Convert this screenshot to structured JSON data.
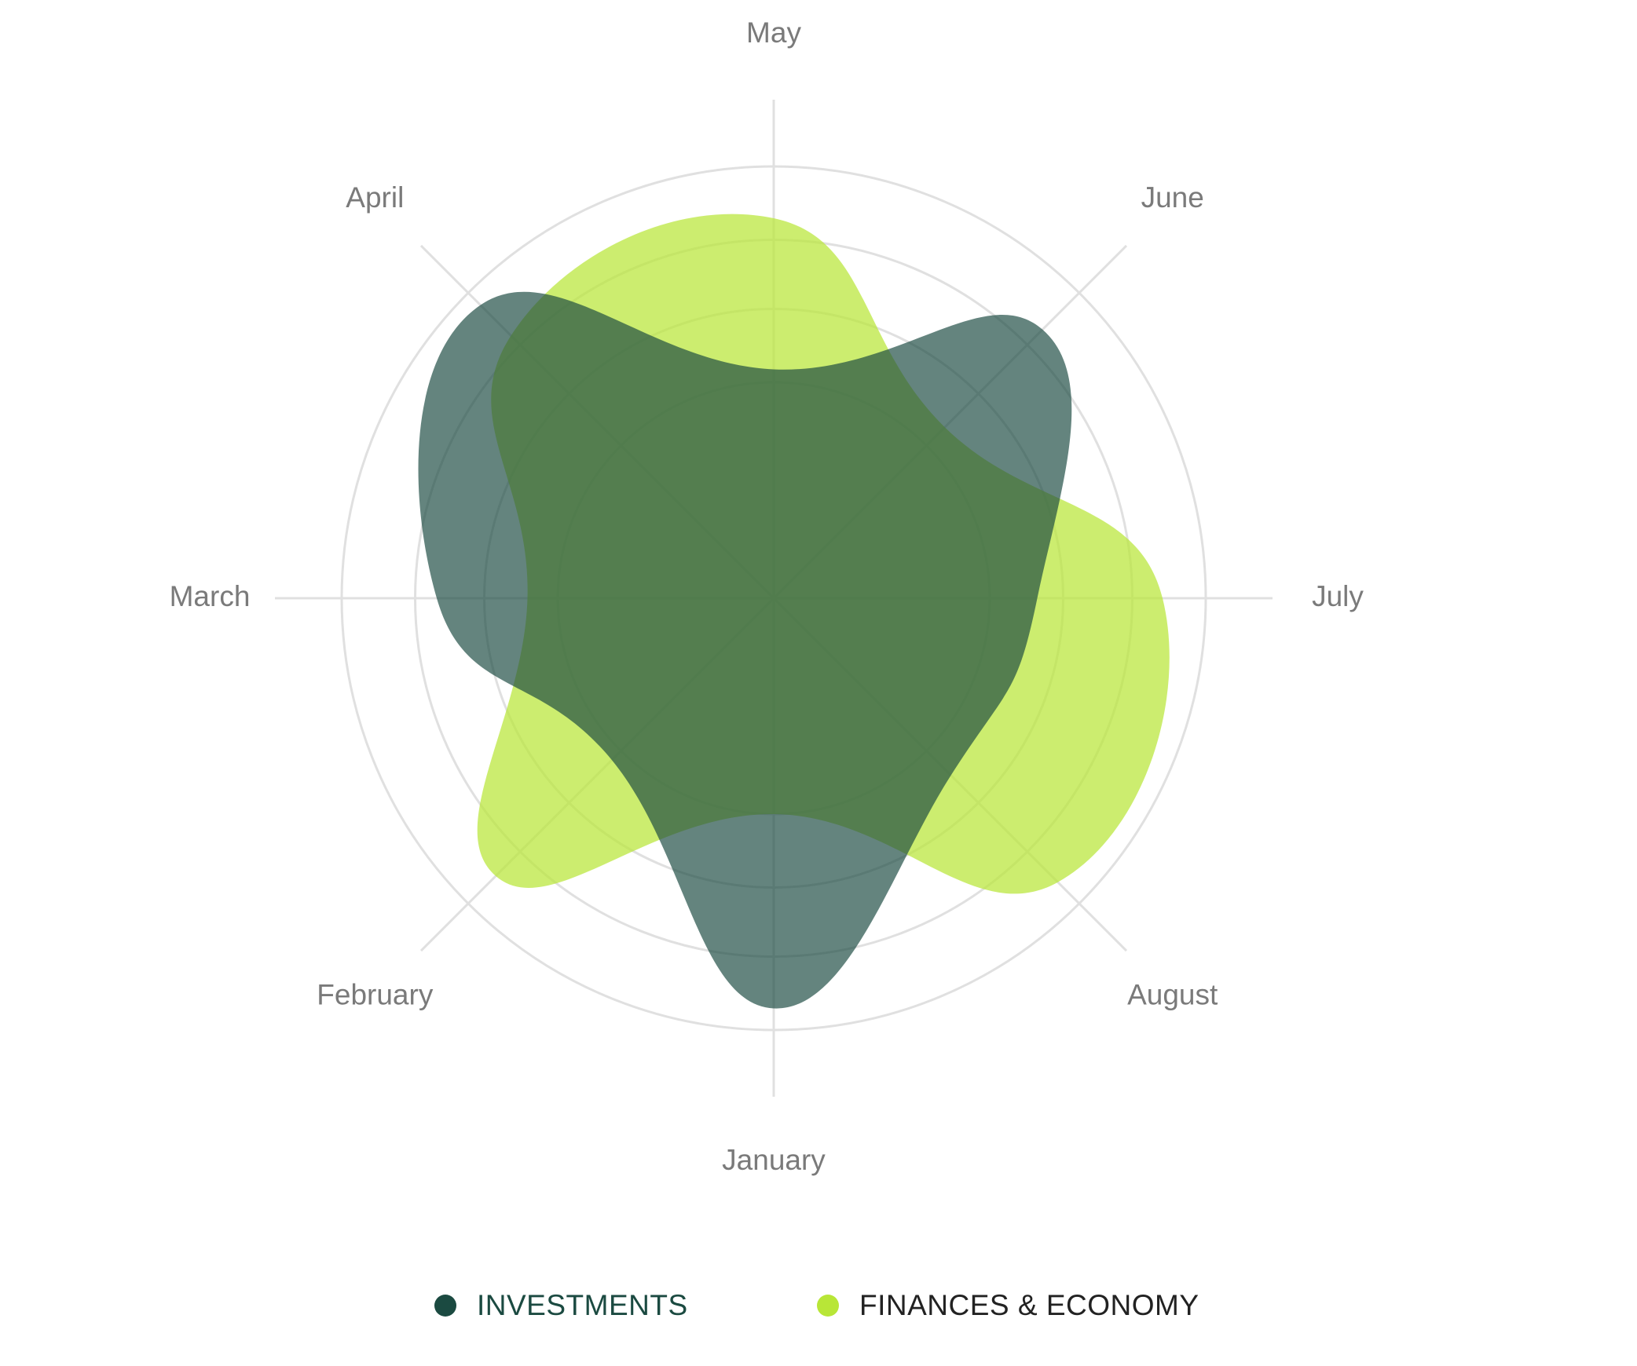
{
  "chart_data": {
    "type": "radar",
    "categories": [
      "January",
      "February",
      "March",
      "April",
      "May",
      "June",
      "July",
      "August"
    ],
    "rlim": [
      0,
      100
    ],
    "rings": [
      50,
      67,
      83,
      100
    ],
    "grid": true,
    "legend_position": "bottom-center",
    "series": [
      {
        "name": "INVESTMENTS",
        "color": "#1b4a41",
        "fill_opacity": 0.68,
        "values": [
          95,
          53,
          78,
          96,
          53,
          88,
          61,
          58
        ]
      },
      {
        "name": "FINANCES & ECONOMY",
        "color": "#b8e637",
        "fill_opacity": 0.72,
        "values": [
          50,
          91,
          57,
          86,
          88,
          56,
          90,
          93
        ]
      }
    ]
  }
}
